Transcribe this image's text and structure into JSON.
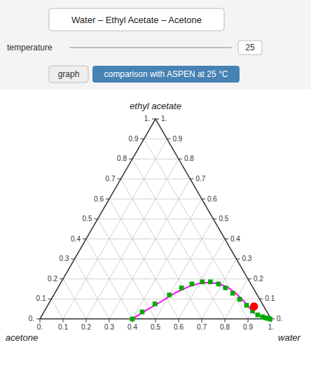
{
  "chart_data": {
    "type": "ternary",
    "title": "Water – Ethyl Acetate – Acetone",
    "subtitle": "comparison with ASPEN at 25 °C",
    "annotations": [
      "temperature",
      "25",
      "graph"
    ],
    "axis_labels": {
      "top": "ethyl acetate",
      "bottom_left": "acetone",
      "bottom_right": "water"
    },
    "range": [
      0,
      1
    ],
    "bottom_ticks": [
      {
        "value": 0,
        "label": "0."
      },
      0.1,
      0.2,
      0.3,
      0.4,
      0.5,
      0.6,
      0.7,
      0.8,
      0.9,
      {
        "value": 1,
        "label": "1."
      }
    ],
    "left_ticks": [
      {
        "value": 0,
        "label": "0."
      },
      0.1,
      0.2,
      0.3,
      0.4,
      0.5,
      0.6,
      0.7,
      0.8,
      0.9,
      {
        "value": 1,
        "label": "1."
      }
    ],
    "right_ticks": [
      {
        "value": 0,
        "label": "0."
      },
      0.1,
      0.2,
      0.3,
      0.4,
      0.5,
      0.6,
      0.7,
      0.8,
      0.9,
      {
        "value": 1,
        "label": "1."
      }
    ],
    "grid": true,
    "series": [
      {
        "type": "line",
        "color": "#ff00ff",
        "water": [
          0.4,
          0.44,
          0.48,
          0.52,
          0.56,
          0.6,
          0.64,
          0.68,
          0.73,
          0.78,
          0.83,
          0.88,
          0.915
        ],
        "ethyl_acetate": [
          0.0,
          0.045,
          0.085,
          0.13,
          0.16,
          0.178,
          0.182,
          0.178,
          0.16,
          0.13,
          0.095,
          0.055,
          0.025
        ]
      },
      {
        "type": "scatter",
        "marker": "square",
        "color": "#00aa00",
        "water": [
          0.4,
          0.425,
          0.46,
          0.5,
          0.535,
          0.57,
          0.61,
          0.645,
          0.685,
          0.725,
          0.77,
          0.815,
          0.86,
          0.9,
          0.932,
          0.958,
          0.974,
          0.987,
          0.996
        ],
        "ethyl_acetate": [
          0.0,
          0.035,
          0.075,
          0.12,
          0.155,
          0.175,
          0.185,
          0.185,
          0.175,
          0.155,
          0.128,
          0.098,
          0.068,
          0.04,
          0.02,
          0.01,
          0.005,
          0.002,
          0.0
        ]
      },
      {
        "type": "scatter",
        "marker": "circle",
        "color": "#ff0000",
        "water": [
          0.895
        ],
        "ethyl_acetate": [
          0.062
        ]
      }
    ]
  }
}
